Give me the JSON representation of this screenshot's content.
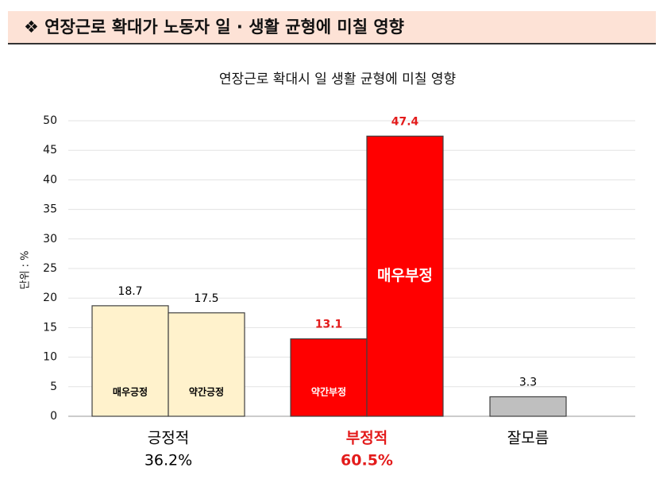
{
  "header_title": "❖ 연장근로 확대가 노동자 일 · 생활 균형에 미칠 영향",
  "chart_data": {
    "type": "grouped-bar",
    "title": "연장근로 확대시 일 생활 균형에 미칠 영향",
    "y_label": "단위 : %",
    "ylim": [
      0,
      50
    ],
    "yticks": [
      0,
      5,
      10,
      15,
      20,
      25,
      30,
      35,
      40,
      45,
      50
    ],
    "grid": true,
    "groups": [
      {
        "name": "긍정적",
        "total": 36.2,
        "total_label": "36.2%",
        "color": "#fff2cc",
        "border": "#404040",
        "text_color": "#000000",
        "inner_color": "#000000",
        "bars": [
          {
            "name": "매우긍정",
            "value": 18.7
          },
          {
            "name": "약간긍정",
            "value": 17.5
          }
        ]
      },
      {
        "name": "부정적",
        "total": 60.5,
        "total_label": "60.5%",
        "color": "#ff0000",
        "border": "#404040",
        "text_color": "#e31b1b",
        "inner_color": "#ffffff",
        "bars": [
          {
            "name": "약간부정",
            "value": 13.1
          },
          {
            "name": "매우부정",
            "value": 47.4
          }
        ]
      },
      {
        "name": "잘모름",
        "color": "#bfbfbf",
        "border": "#404040",
        "text_color": "#000000",
        "inner_color": "#000000",
        "bars": [
          {
            "value": 3.3
          }
        ]
      }
    ]
  }
}
